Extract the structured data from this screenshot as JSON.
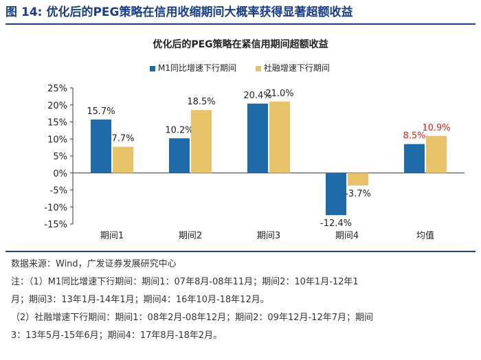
{
  "figure": {
    "label": "图",
    "number": "14:",
    "title": "优化后的PEG策略在信用收缩期间大概率获得显著超额收益"
  },
  "chart_data": {
    "type": "bar",
    "title": "优化后的PEG策略在紧信用期间超额收益",
    "categories": [
      "期间1",
      "期间2",
      "期间3",
      "期间4",
      "均值"
    ],
    "series": [
      {
        "name": "M1同比增速下行期间",
        "color": "#1f6aa8",
        "values": [
          15.7,
          10.2,
          20.4,
          -12.4,
          8.5
        ],
        "labels": [
          "15.7%",
          "10.2%",
          "20.4%",
          "-12.4%",
          "8.5%"
        ]
      },
      {
        "name": "社融增速下行期间",
        "color": "#e8c36a",
        "values": [
          7.7,
          18.5,
          21.0,
          -3.7,
          10.9
        ],
        "labels": [
          "7.7%",
          "18.5%",
          "21.0%",
          "-3.7%",
          "10.9%"
        ]
      }
    ],
    "highlight_label_color": "#e0231c",
    "highlight_category_index": 4,
    "ylim": [
      -15,
      25
    ],
    "yticks": [
      25,
      20,
      15,
      10,
      5,
      0,
      -5,
      -10,
      -15
    ],
    "ytick_labels": [
      "25%",
      "20%",
      "15%",
      "10%",
      "5%",
      "0%",
      "-5%",
      "-10%",
      "-15%"
    ],
    "xlabel": "",
    "ylabel": ""
  },
  "notes": {
    "source": "数据来源：Wind，广发证券发展研究中心",
    "line1": "注：（1）M1同比增速下行期间：期间1：07年8月-08年11月；期间2：10年1月-12年1",
    "line2": "月；期间3：13年1月-14年1月；期间4：16年10月-18年12月。",
    "line3": "（2）社融增速下行期间：期间1：08年2月-08年12月；期间2：09年12月-12年7月；期间",
    "line4": "3：13年5月-15年6月；期间4：17年8月-18年2月。"
  }
}
